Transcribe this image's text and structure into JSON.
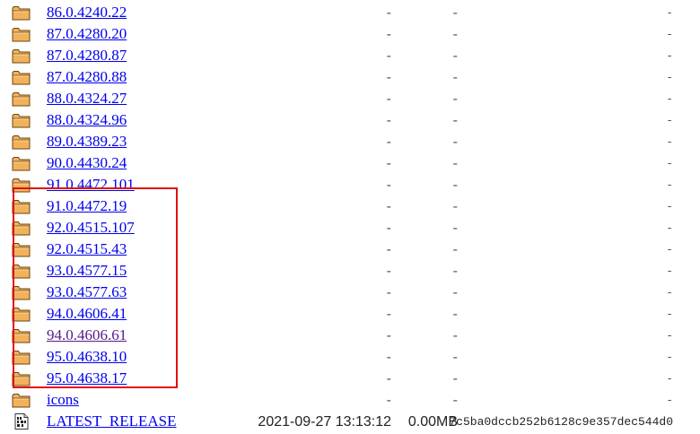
{
  "colors": {
    "link": "#0000ee",
    "visited_link": "#551a8b",
    "folder_fill": "#f2b25c",
    "folder_outline": "#6b4410",
    "highlight": "#e01010"
  },
  "listing": {
    "rows": [
      {
        "icon": "folder-icon",
        "name": "86.0.4240.22",
        "date": "-",
        "size": "-",
        "description": "-",
        "visited": false
      },
      {
        "icon": "folder-icon",
        "name": "87.0.4280.20",
        "date": "-",
        "size": "-",
        "description": "-",
        "visited": false
      },
      {
        "icon": "folder-icon",
        "name": "87.0.4280.87",
        "date": "-",
        "size": "-",
        "description": "-",
        "visited": false
      },
      {
        "icon": "folder-icon",
        "name": "87.0.4280.88",
        "date": "-",
        "size": "-",
        "description": "-",
        "visited": false
      },
      {
        "icon": "folder-icon",
        "name": "88.0.4324.27",
        "date": "-",
        "size": "-",
        "description": "-",
        "visited": false
      },
      {
        "icon": "folder-icon",
        "name": "88.0.4324.96",
        "date": "-",
        "size": "-",
        "description": "-",
        "visited": false
      },
      {
        "icon": "folder-icon",
        "name": "89.0.4389.23",
        "date": "-",
        "size": "-",
        "description": "-",
        "visited": false
      },
      {
        "icon": "folder-icon",
        "name": "90.0.4430.24",
        "date": "-",
        "size": "-",
        "description": "-",
        "visited": false
      },
      {
        "icon": "folder-icon",
        "name": "91.0.4472.101",
        "date": "-",
        "size": "-",
        "description": "-",
        "visited": false
      },
      {
        "icon": "folder-icon",
        "name": "91.0.4472.19",
        "date": "-",
        "size": "-",
        "description": "-",
        "visited": false
      },
      {
        "icon": "folder-icon",
        "name": "92.0.4515.107",
        "date": "-",
        "size": "-",
        "description": "-",
        "visited": false
      },
      {
        "icon": "folder-icon",
        "name": "92.0.4515.43",
        "date": "-",
        "size": "-",
        "description": "-",
        "visited": false
      },
      {
        "icon": "folder-icon",
        "name": "93.0.4577.15",
        "date": "-",
        "size": "-",
        "description": "-",
        "visited": false
      },
      {
        "icon": "folder-icon",
        "name": "93.0.4577.63",
        "date": "-",
        "size": "-",
        "description": "-",
        "visited": false
      },
      {
        "icon": "folder-icon",
        "name": "94.0.4606.41",
        "date": "-",
        "size": "-",
        "description": "-",
        "visited": false
      },
      {
        "icon": "folder-icon",
        "name": "94.0.4606.61",
        "date": "-",
        "size": "-",
        "description": "-",
        "visited": true
      },
      {
        "icon": "folder-icon",
        "name": "95.0.4638.10",
        "date": "-",
        "size": "-",
        "description": "-",
        "visited": false
      },
      {
        "icon": "folder-icon",
        "name": "95.0.4638.17",
        "date": "-",
        "size": "-",
        "description": "-",
        "visited": false
      },
      {
        "icon": "folder-icon",
        "name": "icons",
        "date": "-",
        "size": "-",
        "description": "-",
        "visited": false
      },
      {
        "icon": "binary-file-icon",
        "name": "LATEST_RELEASE",
        "date": "2021-09-27 13:13:12",
        "size": "0.00MB",
        "description": "7c5ba0dccb252b6128c9e357dec544d0",
        "visited": false
      }
    ]
  }
}
